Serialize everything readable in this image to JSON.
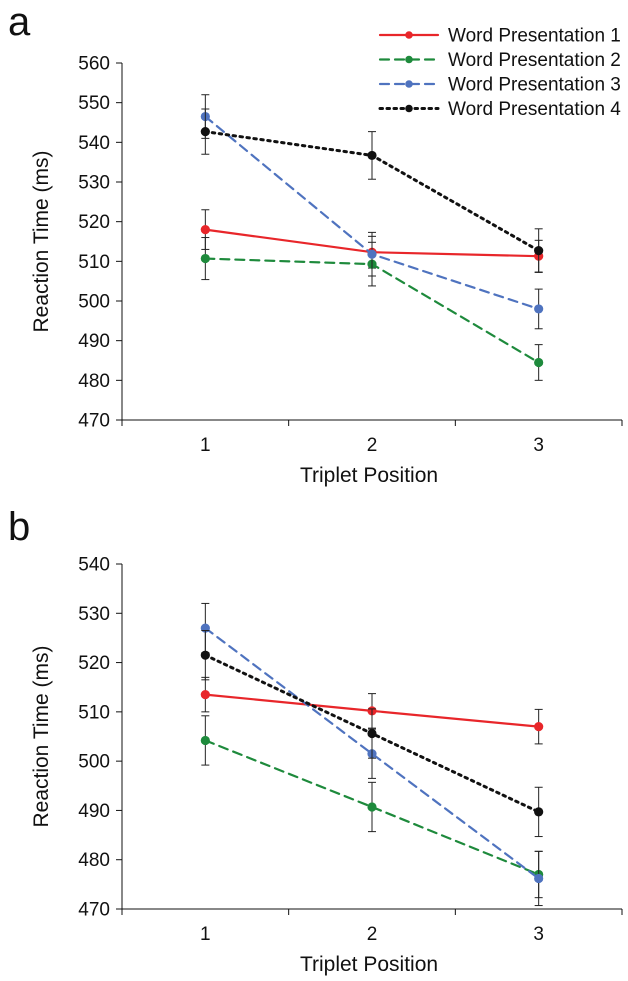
{
  "chart_data": [
    {
      "panel_label": "a",
      "type": "line",
      "x": [
        1,
        2,
        3
      ],
      "xlabel": "Triplet Position",
      "ylabel": "Reaction Time (ms)",
      "xlim": [
        0.5,
        3.5
      ],
      "ylim": [
        470,
        560
      ],
      "yticks": [
        470,
        480,
        490,
        500,
        510,
        520,
        530,
        540,
        550,
        560
      ],
      "legend": "top-right",
      "series": [
        {
          "name": "Word Presentation 1",
          "color": "#e8262a",
          "style": "solid",
          "values": [
            518,
            512.3,
            511.3
          ],
          "errors": [
            5,
            4,
            4
          ]
        },
        {
          "name": "Word Presentation 2",
          "color": "#1e8a3c",
          "style": "dashed",
          "values": [
            510.7,
            509.3,
            484.5
          ],
          "errors": [
            5.3,
            5.5,
            4.5
          ]
        },
        {
          "name": "Word Presentation 3",
          "color": "#4f73bf",
          "style": "dashed",
          "values": [
            546.5,
            511.8,
            498
          ],
          "errors": [
            5.5,
            5.5,
            5
          ]
        },
        {
          "name": "Word Presentation 4",
          "color": "#111111",
          "style": "dotted",
          "values": [
            542.7,
            536.7,
            512.7
          ],
          "errors": [
            5.7,
            6,
            5.5
          ]
        }
      ]
    },
    {
      "panel_label": "b",
      "type": "line",
      "x": [
        1,
        2,
        3
      ],
      "xlabel": "Triplet Position",
      "ylabel": "Reaction Time (ms)",
      "xlim": [
        0.5,
        3.5
      ],
      "ylim": [
        470,
        540
      ],
      "yticks": [
        470,
        480,
        490,
        500,
        510,
        520,
        530,
        540
      ],
      "series": [
        {
          "name": "Word Presentation 1",
          "color": "#e8262a",
          "style": "solid",
          "values": [
            513.5,
            510.2,
            507
          ],
          "errors": [
            3.5,
            3.5,
            3.5
          ]
        },
        {
          "name": "Word Presentation 2",
          "color": "#1e8a3c",
          "style": "dashed",
          "values": [
            504.2,
            490.7,
            477
          ],
          "errors": [
            5,
            5,
            4.7
          ]
        },
        {
          "name": "Word Presentation 3",
          "color": "#4f73bf",
          "style": "dashed",
          "values": [
            527,
            501.5,
            476.2
          ],
          "errors": [
            5,
            5,
            5.5
          ]
        },
        {
          "name": "Word Presentation 4",
          "color": "#111111",
          "style": "dotted",
          "values": [
            521.5,
            505.6,
            489.7
          ],
          "errors": [
            5,
            5,
            5
          ]
        }
      ]
    }
  ]
}
